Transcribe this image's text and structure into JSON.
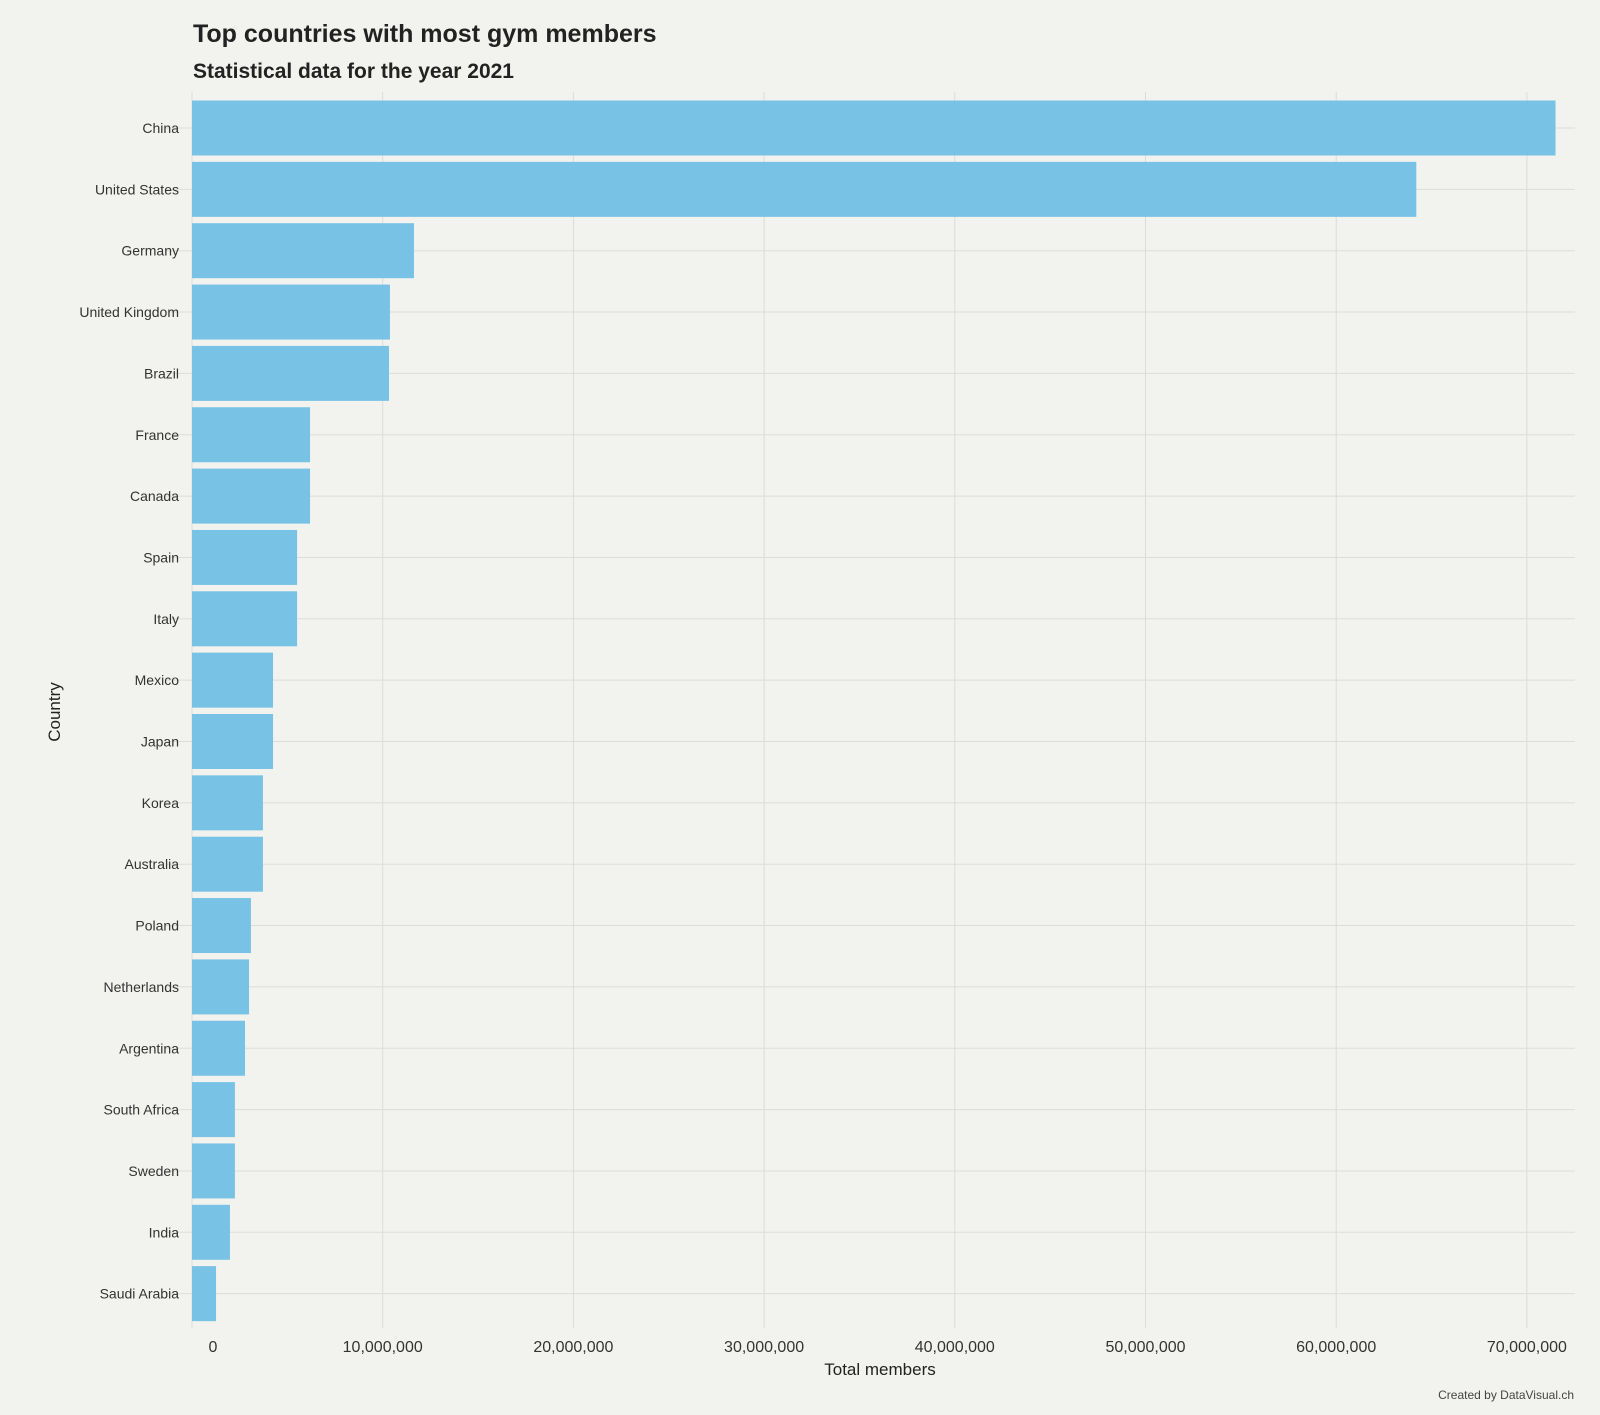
{
  "chart_data": {
    "type": "bar",
    "orientation": "horizontal",
    "title": "Top countries with most gym members",
    "subtitle": "Statistical data for the year 2021",
    "xlabel": "Total members",
    "ylabel": "Country",
    "caption": "Created by DataVisual.ch",
    "xlim": [
      0,
      72500000
    ],
    "x_ticks": [
      0,
      10000000,
      20000000,
      30000000,
      40000000,
      50000000,
      60000000,
      70000000
    ],
    "x_tick_labels": [
      "0",
      "10,000,000",
      "20,000,000",
      "30,000,000",
      "40,000,000",
      "50,000,000",
      "60,000,000",
      "70,000,000"
    ],
    "grid": true,
    "categories": [
      "China",
      "United States",
      "Germany",
      "United Kingdom",
      "Brazil",
      "France",
      "Canada",
      "Spain",
      "Italy",
      "Mexico",
      "Japan",
      "Korea",
      "Australia",
      "Poland",
      "Netherlands",
      "Argentina",
      "South Africa",
      "Sweden",
      "India",
      "Saudi Arabia"
    ],
    "values": [
      71500000,
      64200000,
      11640000,
      10380000,
      10330000,
      6190000,
      6190000,
      5510000,
      5510000,
      4250000,
      4250000,
      3720000,
      3720000,
      3090000,
      2990000,
      2780000,
      2250000,
      2250000,
      1990000,
      1260000
    ],
    "bar_color": "#78c2e5",
    "background_color": "#f2f2ee",
    "grid_color": "#dcdcd8"
  }
}
